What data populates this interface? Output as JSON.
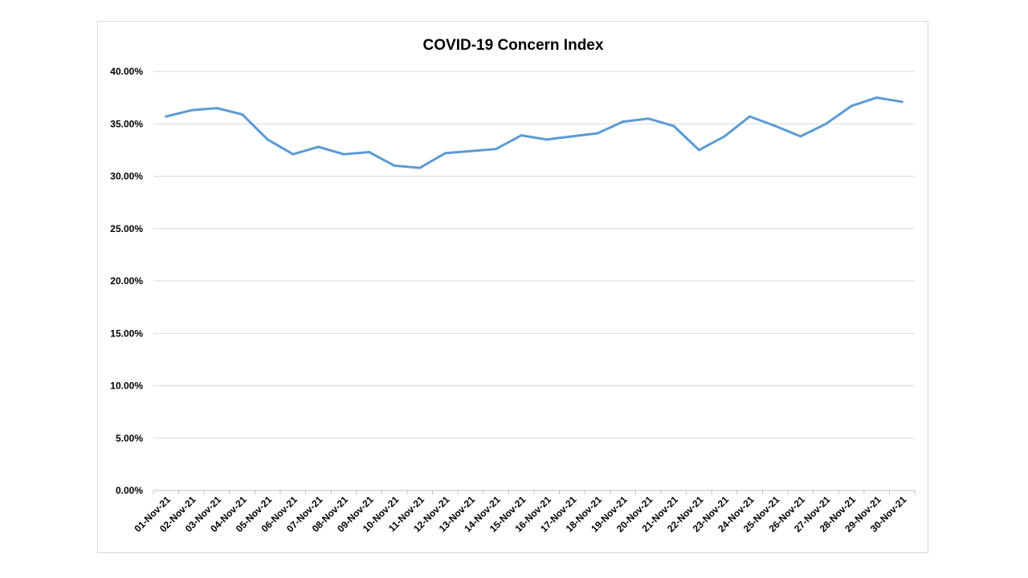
{
  "chart_data": {
    "type": "line",
    "title": "COVID-19 Concern Index",
    "xlabel": "",
    "ylabel": "",
    "ylim": [
      0,
      40
    ],
    "y_ticks": [
      "0.00%",
      "5.00%",
      "10.00%",
      "15.00%",
      "20.00%",
      "25.00%",
      "30.00%",
      "35.00%",
      "40.00%"
    ],
    "y_tick_values": [
      0,
      5,
      10,
      15,
      20,
      25,
      30,
      35,
      40
    ],
    "grid": true,
    "legend": "none",
    "categories": [
      "01-Nov-21",
      "02-Nov-21",
      "03-Nov-21",
      "04-Nov-21",
      "05-Nov-21",
      "06-Nov-21",
      "07-Nov-21",
      "08-Nov-21",
      "09-Nov-21",
      "10-Nov-21",
      "11-Nov-21",
      "12-Nov-21",
      "13-Nov-21",
      "14-Nov-21",
      "15-Nov-21",
      "16-Nov-21",
      "17-Nov-21",
      "18-Nov-21",
      "19-Nov-21",
      "20-Nov-21",
      "21-Nov-21",
      "22-Nov-21",
      "23-Nov-21",
      "24-Nov-21",
      "25-Nov-21",
      "26-Nov-21",
      "27-Nov-21",
      "28-Nov-21",
      "29-Nov-21",
      "30-Nov-21"
    ],
    "series": [
      {
        "color": "#5b9bd5",
        "values": [
          35.7,
          36.3,
          36.5,
          35.9,
          33.5,
          32.1,
          32.8,
          32.1,
          32.3,
          31.0,
          30.8,
          32.2,
          32.4,
          32.6,
          33.9,
          33.5,
          33.8,
          34.1,
          35.2,
          35.5,
          34.8,
          32.5,
          33.8,
          35.7,
          34.8,
          33.8,
          35.0,
          36.7,
          37.5,
          37.1
        ]
      }
    ]
  }
}
